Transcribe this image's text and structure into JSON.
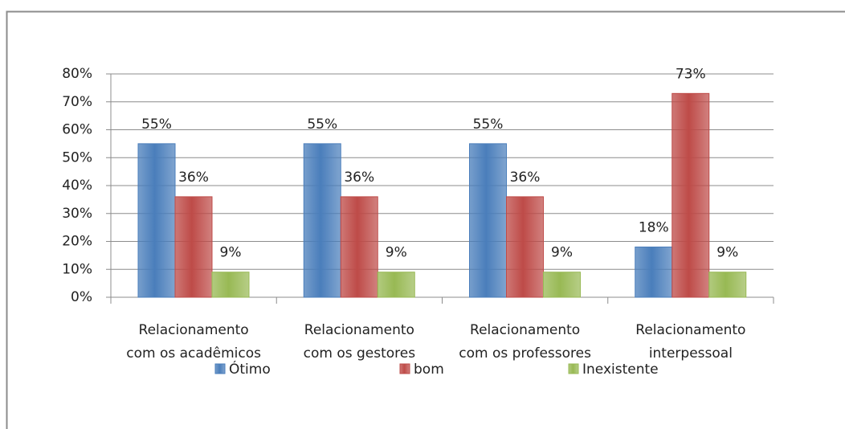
{
  "chart_data": {
    "type": "bar",
    "categories": [
      [
        "Relacionamento",
        "com os acadêmicos"
      ],
      [
        "Relacionamento",
        "com os gestores"
      ],
      [
        "Relacionamento",
        "com os professores"
      ],
      [
        "Relacionamento",
        "interpessoal"
      ]
    ],
    "series": [
      {
        "name": "Ótimo",
        "color": "#4a7ebb",
        "values": [
          55,
          55,
          55,
          18
        ],
        "value_labels": [
          "55%",
          "55%",
          "55%",
          "18%"
        ]
      },
      {
        "name": "bom",
        "color": "#be4b48",
        "values": [
          36,
          36,
          36,
          73
        ],
        "value_labels": [
          "36%",
          "36%",
          "36%",
          "73%"
        ]
      },
      {
        "name": "Inexistente",
        "color": "#98b954",
        "values": [
          9,
          9,
          9,
          9
        ],
        "value_labels": [
          "9%",
          "9%",
          "9%",
          "9%"
        ]
      }
    ],
    "ylim": [
      0,
      80
    ],
    "yticks": [
      {
        "value": 0,
        "label": "0%"
      },
      {
        "value": 10,
        "label": "10%"
      },
      {
        "value": 20,
        "label": "20%"
      },
      {
        "value": 30,
        "label": "30%"
      },
      {
        "value": 40,
        "label": "40%"
      },
      {
        "value": 50,
        "label": "50%"
      },
      {
        "value": 60,
        "label": "60%"
      },
      {
        "value": 70,
        "label": "70%"
      },
      {
        "value": 80,
        "label": "80%"
      }
    ],
    "grid": true,
    "legend": "bottom"
  }
}
